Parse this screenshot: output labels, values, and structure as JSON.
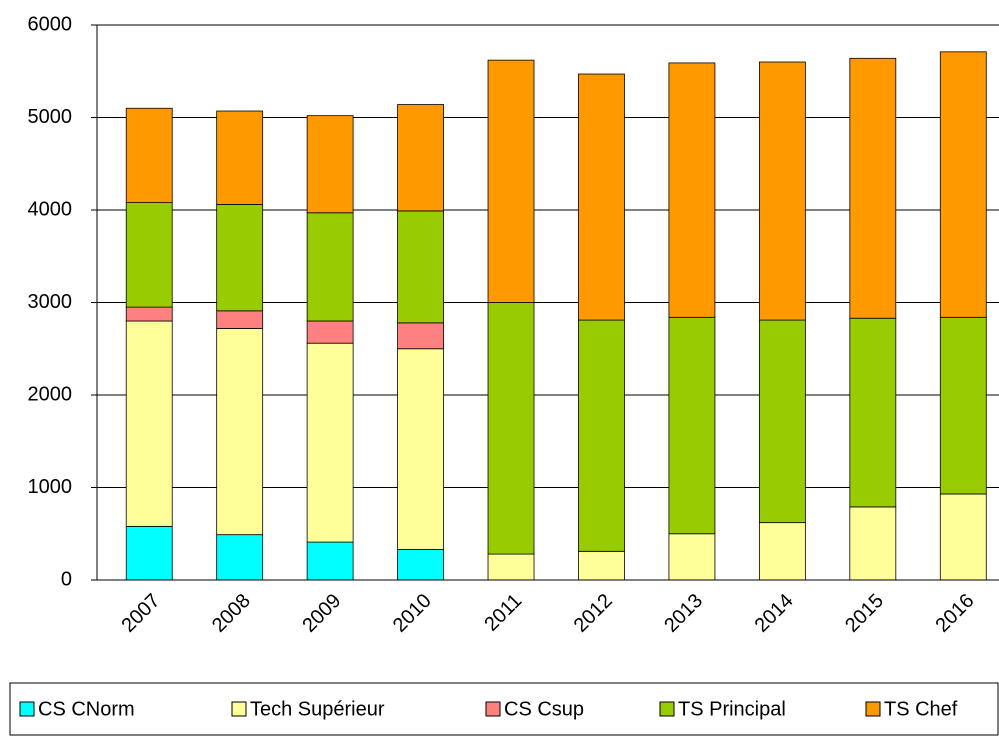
{
  "chart_data": {
    "type": "stacked_bar",
    "categories": [
      "2007",
      "2008",
      "2009",
      "2010",
      "2011",
      "2012",
      "2013",
      "2014",
      "2015",
      "2016"
    ],
    "series": [
      {
        "name": "CS CNorm",
        "color": "#00ffff",
        "values": [
          580,
          490,
          410,
          330,
          0,
          0,
          0,
          0,
          0,
          0
        ]
      },
      {
        "name": "Tech Supérieur",
        "color": "#ffff99",
        "values": [
          2220,
          2230,
          2150,
          2170,
          280,
          310,
          500,
          620,
          790,
          930
        ]
      },
      {
        "name": "CS Csup",
        "color": "#ff8080",
        "values": [
          150,
          190,
          240,
          280,
          0,
          0,
          0,
          0,
          0,
          0
        ]
      },
      {
        "name": "TS Principal",
        "color": "#99cc00",
        "values": [
          1130,
          1150,
          1170,
          1210,
          2720,
          2500,
          2340,
          2190,
          2040,
          1910
        ]
      },
      {
        "name": "TS Chef",
        "color": "#ff9900",
        "values": [
          1020,
          1010,
          1050,
          1150,
          2620,
          2660,
          2750,
          2790,
          2810,
          2870
        ]
      }
    ],
    "ylim": [
      0,
      6000
    ],
    "yticks": [
      0,
      1000,
      2000,
      3000,
      4000,
      5000,
      6000
    ],
    "grid": true,
    "legend": "bottom"
  }
}
